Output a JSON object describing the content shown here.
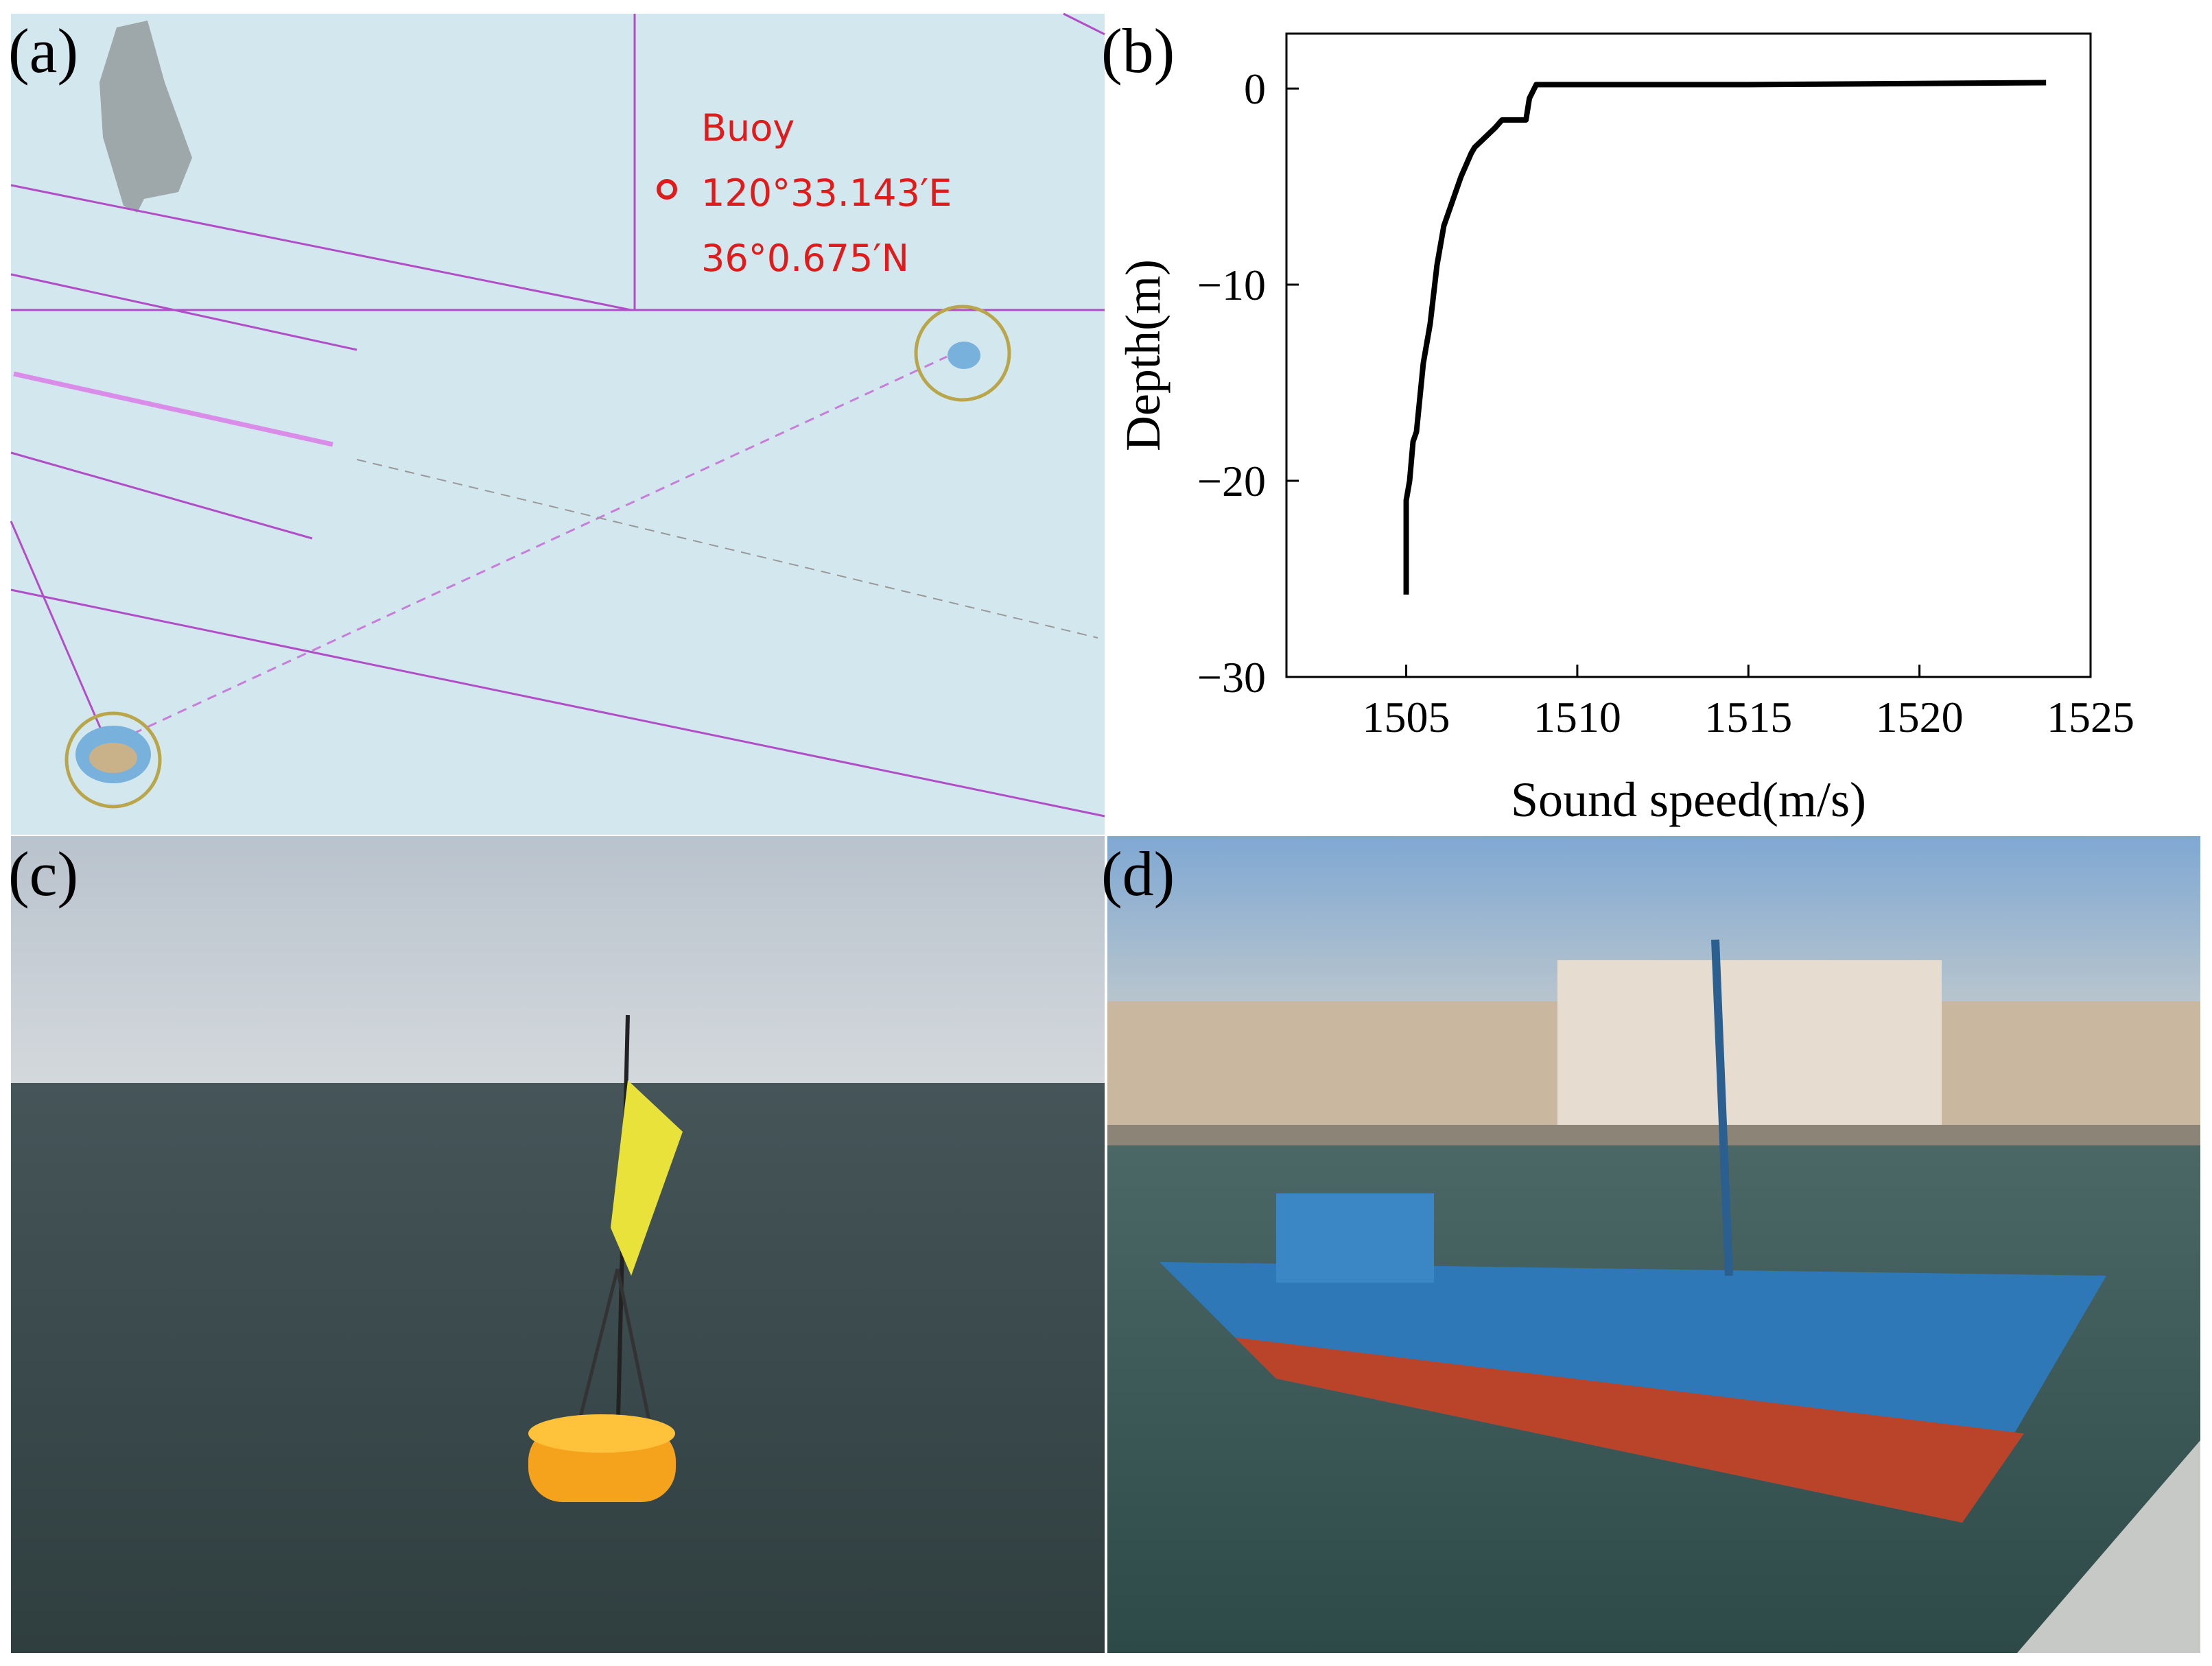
{
  "panels": {
    "a": "(a)",
    "b": "(b)",
    "c": "(c)",
    "d": "(d)"
  },
  "map": {
    "buoy_label": "Buoy",
    "longitude": "120°33.143′E",
    "latitude": "36°0.675′N"
  },
  "chart_data": {
    "type": "line",
    "xlabel": "Sound speed(m/s)",
    "ylabel": "Depth(m)",
    "xlim": [
      1501.5,
      1525
    ],
    "ylim": [
      -30,
      2.8
    ],
    "xticks": [
      1505,
      1510,
      1515,
      1520,
      1525
    ],
    "yticks": [
      {
        "value": -30,
        "label": "−30"
      },
      {
        "value": -20,
        "label": "−20"
      },
      {
        "value": -10,
        "label": "−10"
      },
      0
    ],
    "series": [
      {
        "color": "#000000",
        "x": [
          1505.0,
          1505.0,
          1505.1,
          1505.2,
          1505.3,
          1505.5,
          1505.7,
          1505.9,
          1506.1,
          1506.3,
          1506.6,
          1506.9,
          1507.0,
          1507.6,
          1507.8,
          1508.5,
          1508.6,
          1508.8,
          1515.0,
          1523.7
        ],
        "values": [
          -25.8,
          -21.0,
          -20.0,
          -18.0,
          -17.5,
          -14.0,
          -12.0,
          -9.0,
          -7.0,
          -6.0,
          -4.5,
          -3.3,
          -3.0,
          -2.0,
          -1.6,
          -1.6,
          -0.5,
          0.2,
          0.2,
          0.3
        ]
      }
    ]
  }
}
